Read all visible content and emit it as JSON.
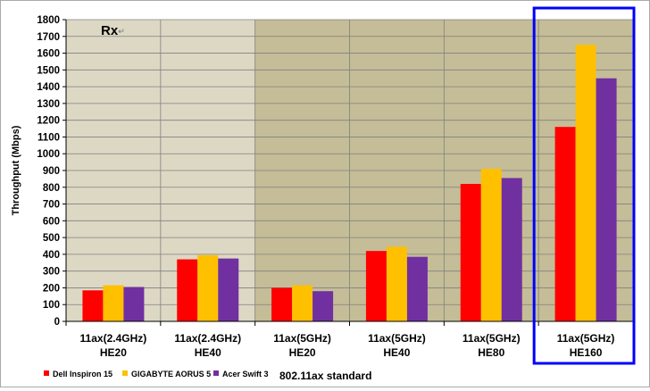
{
  "chart_data": {
    "type": "bar",
    "title": "Rx",
    "title_mark": "↵",
    "xlabel": "802.11ax standard",
    "ylabel": "Throughput (Mbps)",
    "ylim": [
      0,
      1800
    ],
    "yticks": [
      0,
      100,
      200,
      300,
      400,
      500,
      600,
      700,
      800,
      900,
      1000,
      1100,
      1200,
      1300,
      1400,
      1500,
      1600,
      1700,
      1800
    ],
    "grid": true,
    "legend_position": "bottom-left",
    "categories": [
      {
        "line1": "11ax(2.4GHz)",
        "line2": "HE20"
      },
      {
        "line1": "11ax(2.4GHz)",
        "line2": "HE40"
      },
      {
        "line1": "11ax(5GHz)",
        "line2": "HE20"
      },
      {
        "line1": "11ax(5GHz)",
        "line2": "HE40"
      },
      {
        "line1": "11ax(5GHz)",
        "line2": "HE80"
      },
      {
        "line1": "11ax(5GHz)",
        "line2": "HE160"
      }
    ],
    "category_backgrounds": [
      "#ddd8c4",
      "#ddd8c4",
      "#c4bd97",
      "#c4bd97",
      "#c4bd97",
      "#c4bd97"
    ],
    "series": [
      {
        "name": "Dell Inspiron 15",
        "color": "#ff0000",
        "values": [
          185,
          370,
          200,
          420,
          820,
          1160
        ]
      },
      {
        "name": "GIGABYTE AORUS 5",
        "color": "#ffc000",
        "values": [
          215,
          395,
          215,
          445,
          910,
          1650
        ]
      },
      {
        "name": "Acer Swift 3",
        "color": "#7030a0",
        "values": [
          205,
          375,
          180,
          385,
          855,
          1450
        ]
      }
    ],
    "highlight": {
      "category_index": 5,
      "color": "#0000ff"
    }
  }
}
